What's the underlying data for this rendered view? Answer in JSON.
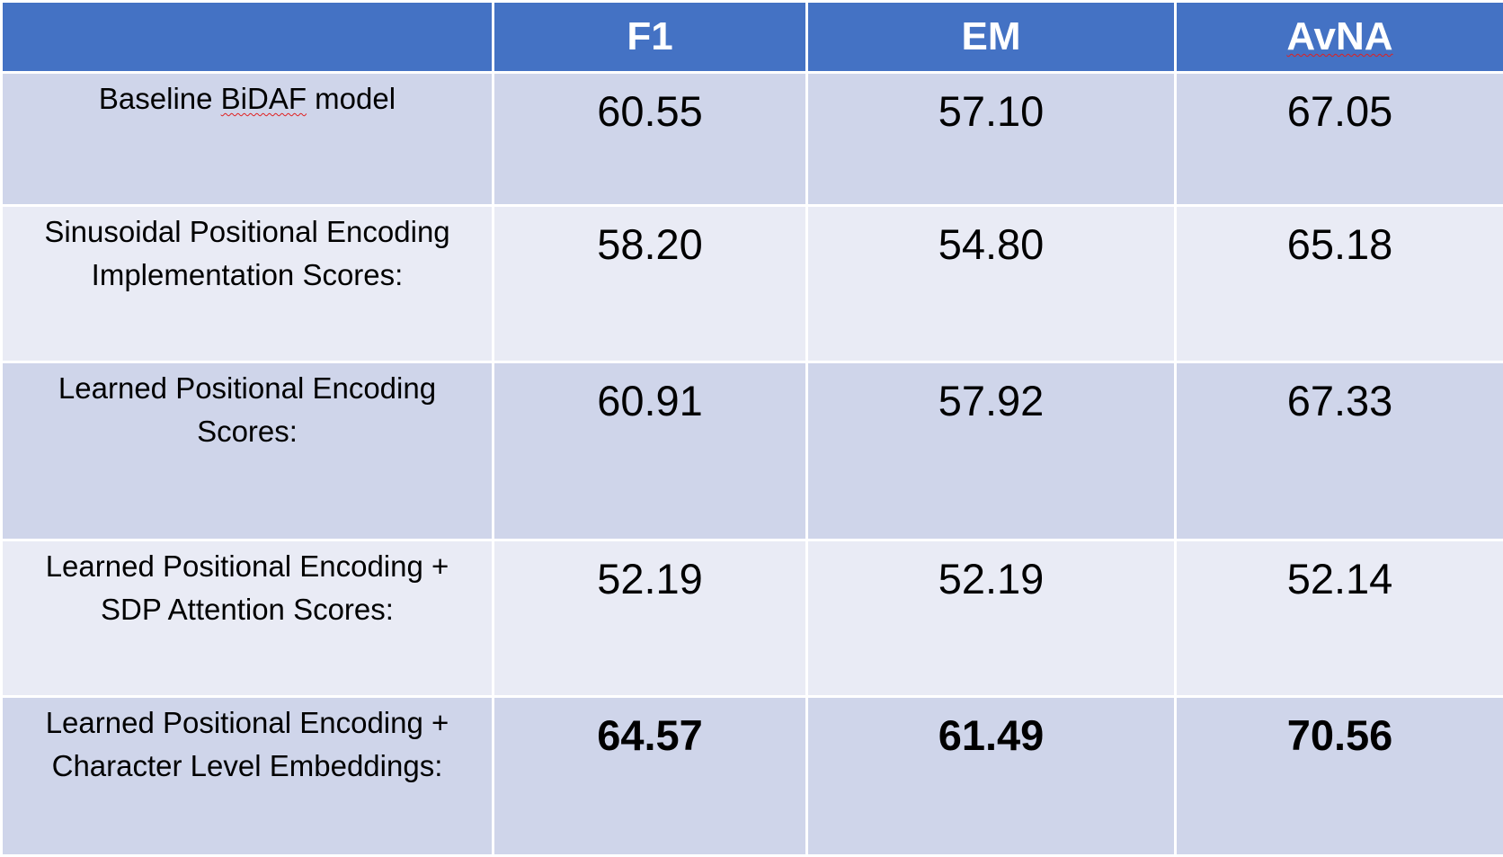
{
  "chart_data": {
    "type": "table",
    "columns": [
      "",
      "F1",
      "EM",
      "AvNA"
    ],
    "rows": [
      {
        "label": "Baseline BiDAF model",
        "values": [
          "60.55",
          "57.10",
          "67.05"
        ],
        "bold": false
      },
      {
        "label": "Sinusoidal Positional Encoding Implementation Scores:",
        "values": [
          "58.20",
          "54.80",
          "65.18"
        ],
        "bold": false
      },
      {
        "label": "Learned Positional Encoding Scores:",
        "values": [
          "60.91",
          "57.92",
          "67.33"
        ],
        "bold": false
      },
      {
        "label": "Learned Positional Encoding + SDP Attention Scores:",
        "values": [
          "52.19",
          "52.19",
          "52.14"
        ],
        "bold": false
      },
      {
        "label": "Learned Positional Encoding + Character Level Embeddings:",
        "values": [
          "64.57",
          "61.49",
          "70.56"
        ],
        "bold": true
      }
    ]
  },
  "colors": {
    "header_bg": "#4472c4",
    "row_dark": "#cfd5ea",
    "row_light": "#e9ebf5"
  }
}
